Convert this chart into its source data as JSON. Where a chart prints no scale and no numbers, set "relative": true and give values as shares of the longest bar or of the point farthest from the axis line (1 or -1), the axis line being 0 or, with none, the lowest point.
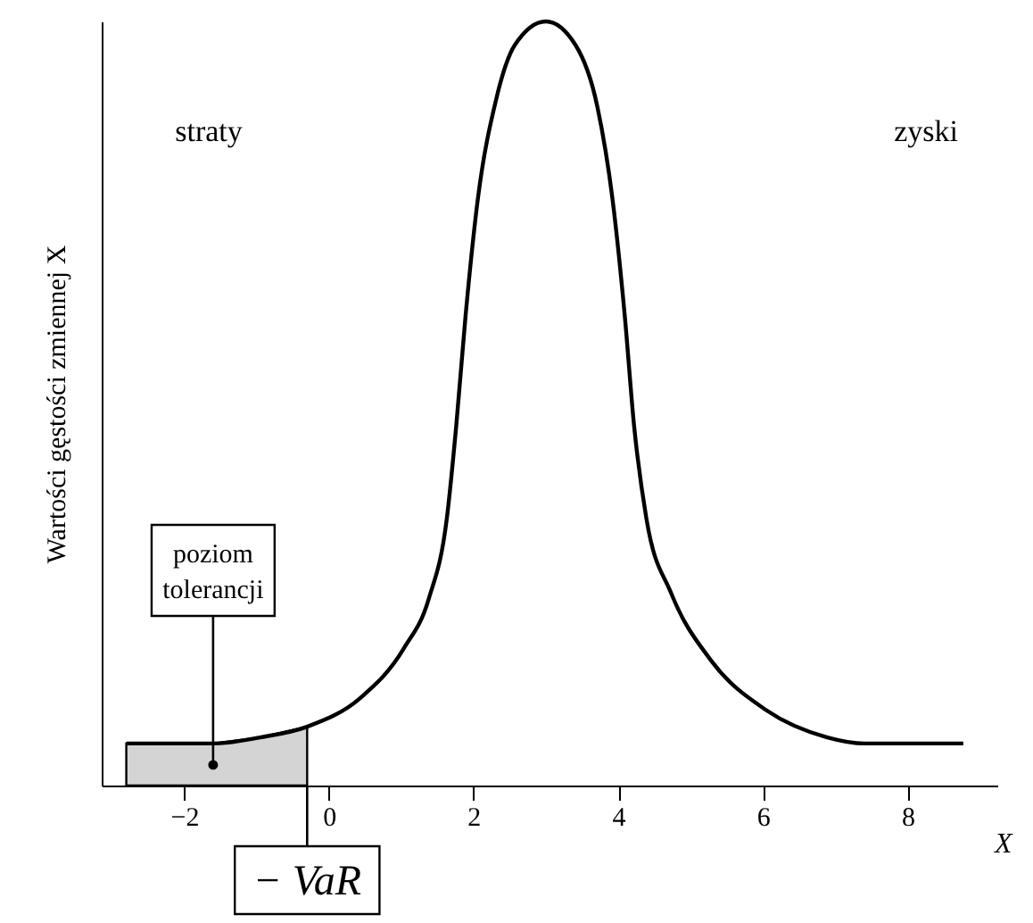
{
  "chart_data": {
    "type": "line",
    "relative": true,
    "xlabel": "X",
    "ylabel": "Wartości gęstości zmiennej X",
    "xlim": [
      -3.14,
      9.24
    ],
    "xticks": [
      -2,
      0,
      2,
      4,
      6,
      8
    ],
    "grid": false,
    "marker": "none",
    "line_style": "solid",
    "series": [
      {
        "color": "#000000",
        "x": [
          -2.8,
          -1.6,
          -0.95,
          -0.3,
          0.44,
          1.04,
          1.38,
          1.63,
          1.76,
          1.89,
          2.06,
          2.31,
          2.57,
          3.0,
          3.41,
          3.71,
          3.92,
          4.09,
          4.22,
          4.39,
          4.73,
          5.28,
          6.04,
          6.89,
          7.4,
          8.77
        ],
        "values": [
          0.055,
          0.055,
          0.063,
          0.077,
          0.115,
          0.18,
          0.244,
          0.349,
          0.47,
          0.615,
          0.768,
          0.897,
          0.969,
          1.0,
          0.969,
          0.889,
          0.768,
          0.615,
          0.47,
          0.349,
          0.252,
          0.164,
          0.099,
          0.063,
          0.055,
          0.055
        ]
      },
      {
        "type": "area",
        "color": "#d4d4d4",
        "x": [
          -2.8,
          -1.6,
          -0.95,
          -0.3
        ],
        "values": [
          0.055,
          0.055,
          0.063,
          0.077
        ]
      }
    ],
    "annotations": [
      "straty",
      "zyski",
      {
        "text": "poziom tolerancji",
        "x": -1.6,
        "y": 0.027
      },
      {
        "text": "− VaR",
        "x": -0.3
      }
    ]
  }
}
